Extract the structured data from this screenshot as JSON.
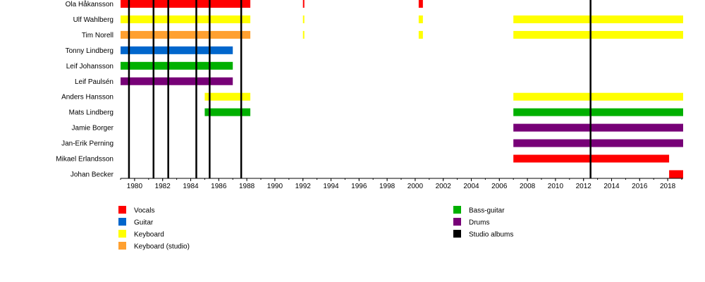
{
  "chart_data": {
    "type": "timeline",
    "x_range": [
      1979,
      2019.1
    ],
    "x_ticks": [
      1980,
      1982,
      1984,
      1986,
      1988,
      1990,
      1992,
      1994,
      1996,
      1998,
      2000,
      2002,
      2004,
      2006,
      2008,
      2010,
      2012,
      2014,
      2016,
      2018
    ],
    "minor_tick_step": 1,
    "colors": {
      "Vocals": "#ff0000",
      "Guitar": "#0066cc",
      "Keyboard": "#ffff00",
      "Keyboard (studio)": "#ffa030",
      "Bass-guitar": "#00b000",
      "Drums": "#770077",
      "Studio albums": "#000000"
    },
    "members": [
      {
        "name": "Ola Håkansson",
        "periods": [
          {
            "role": "Vocals",
            "start": 1979,
            "end": 1988.25
          },
          {
            "role": "Vocals",
            "start": 1992.0,
            "end": 1992.1
          },
          {
            "role": "Vocals",
            "start": 2000.25,
            "end": 2000.55
          }
        ]
      },
      {
        "name": "Ulf Wahlberg",
        "periods": [
          {
            "role": "Keyboard",
            "start": 1979,
            "end": 1988.25
          },
          {
            "role": "Keyboard",
            "start": 1992.0,
            "end": 1992.1
          },
          {
            "role": "Keyboard",
            "start": 2000.25,
            "end": 2000.55
          },
          {
            "role": "Keyboard",
            "start": 2007.0,
            "end": 2019.1
          }
        ]
      },
      {
        "name": "Tim Norell",
        "periods": [
          {
            "role": "Keyboard (studio)",
            "start": 1979,
            "end": 1988.25
          },
          {
            "role": "Keyboard",
            "start": 1992.0,
            "end": 1992.1
          },
          {
            "role": "Keyboard",
            "start": 2000.25,
            "end": 2000.55
          },
          {
            "role": "Keyboard",
            "start": 2007.0,
            "end": 2019.1
          }
        ]
      },
      {
        "name": "Tonny Lindberg",
        "periods": [
          {
            "role": "Guitar",
            "start": 1979,
            "end": 1987.0
          }
        ]
      },
      {
        "name": "Leif Johansson",
        "periods": [
          {
            "role": "Bass-guitar",
            "start": 1979,
            "end": 1987.0
          }
        ]
      },
      {
        "name": "Leif Paulsén",
        "periods": [
          {
            "role": "Drums",
            "start": 1979,
            "end": 1987.0
          }
        ]
      },
      {
        "name": "Anders Hansson",
        "periods": [
          {
            "role": "Keyboard",
            "start": 1985.0,
            "end": 1988.25
          },
          {
            "role": "Keyboard",
            "start": 2007.0,
            "end": 2019.1
          }
        ]
      },
      {
        "name": "Mats Lindberg",
        "periods": [
          {
            "role": "Bass-guitar",
            "start": 1985.0,
            "end": 1988.25
          },
          {
            "role": "Bass-guitar",
            "start": 2007.0,
            "end": 2019.1
          }
        ]
      },
      {
        "name": "Jamie Borger",
        "periods": [
          {
            "role": "Drums",
            "start": 2007.0,
            "end": 2019.1
          }
        ]
      },
      {
        "name": "Jan-Erik Perning",
        "periods": [
          {
            "role": "Drums",
            "start": 2007.0,
            "end": 2019.1
          }
        ]
      },
      {
        "name": "Mikael Erlandsson",
        "periods": [
          {
            "role": "Vocals",
            "start": 2007.0,
            "end": 2018.1
          }
        ]
      },
      {
        "name": "Johan Becker",
        "periods": [
          {
            "role": "Vocals",
            "start": 2018.1,
            "end": 2019.1
          }
        ]
      }
    ],
    "studio_albums": [
      1979.6,
      1981.35,
      1982.4,
      1984.4,
      1985.35,
      1987.6,
      2012.5
    ],
    "legend": [
      [
        "Vocals",
        "Guitar",
        "Keyboard",
        "Keyboard (studio)"
      ],
      [
        "Bass-guitar",
        "Drums",
        "Studio albums"
      ]
    ],
    "legend_placement": "bottom",
    "grid": false
  }
}
